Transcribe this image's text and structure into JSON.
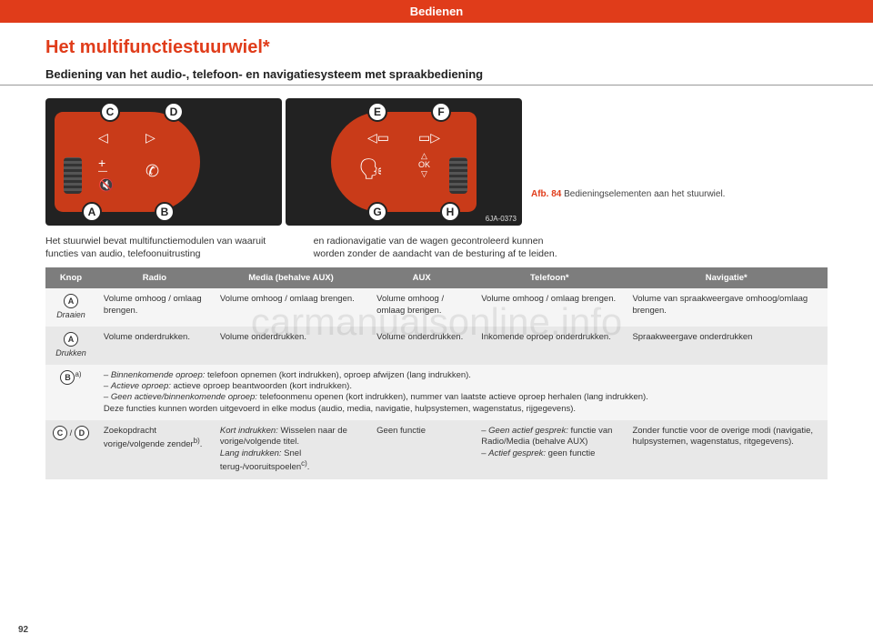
{
  "header": "Bedienen",
  "section_title": "Het multifunctiestuurwiel*",
  "subsection_title": "Bediening van het audio-, telefoon- en navigatiesysteem met spraakbediening",
  "figure": {
    "left_callouts": [
      "C",
      "D",
      "A",
      "B"
    ],
    "right_callouts": [
      "E",
      "F",
      "G",
      "H"
    ],
    "watermark_code": "6JA-0373",
    "caption_label": "Afb. 84",
    "caption_text": "Bedieningselementen aan het stuurwiel."
  },
  "body": {
    "col1": "Het stuurwiel bevat multifunctiemodulen van waaruit functies van audio, telefoonuitrusting",
    "col2": "en radionavigatie van de wagen gecontroleerd kunnen worden zonder de aandacht van de besturing af te leiden."
  },
  "table": {
    "headers": [
      "Knop",
      "Radio",
      "Media (behalve AUX)",
      "AUX",
      "Telefoon*",
      "Navigatie*"
    ],
    "rows": [
      {
        "knop_letters": [
          "A"
        ],
        "knop_sub": "Draaien",
        "knop_suffix": "",
        "cells": [
          "Volume omhoog / omlaag brengen.",
          "Volume omhoog / omlaag brengen.",
          "Volume omhoog / omlaag brengen.",
          "Volume omhoog / omlaag brengen.",
          "Volume van spraakweergave omhoog/omlaag brengen."
        ],
        "full": false
      },
      {
        "knop_letters": [
          "A"
        ],
        "knop_sub": "Drukken",
        "knop_suffix": "",
        "cells": [
          "Volume onderdrukken.",
          "Volume onderdrukken.",
          "Volume onderdrukken.",
          "Inkomende oproep onderdrukken.",
          "Spraakweergave onderdrukken"
        ],
        "full": false
      },
      {
        "knop_letters": [
          "B"
        ],
        "knop_sub": "",
        "knop_suffix": "a)",
        "full": true,
        "full_html": "– <em>Binnenkomende oproep:</em> telefoon opnemen (kort indrukken), oproep afwijzen (lang indrukken).<br>– <em>Actieve oproep:</em> actieve oproep beantwoorden (kort indrukken).<br>– <em>Geen actieve/binnenkomende oproep:</em> telefoonmenu openen (kort indrukken), nummer van laatste actieve oproep herhalen (lang indrukken).<br>Deze functies kunnen worden uitgevoerd in elke modus (audio, media, navigatie, hulpsystemen, wagenstatus, rijgegevens)."
      },
      {
        "knop_letters": [
          "C",
          "D"
        ],
        "knop_sub": "",
        "knop_suffix": "",
        "knop_sep": " / ",
        "cells": [
          "Zoekopdracht vorige/volgende zender<sup>b)</sup>.",
          "<em>Kort indrukken:</em> Wisselen naar de vorige/volgende titel.<br><em>Lang indrukken:</em> Snel terug-/vooruitspoelen<sup>c)</sup>.",
          "Geen functie",
          "– <em>Geen actief gesprek:</em> functie van Radio/Media (behalve AUX)<br>– <em>Actief gesprek:</em> geen functie",
          "Zonder functie voor de overige modi (navigatie, hulpsystemen, wagenstatus, ritgegevens)."
        ],
        "full": false
      }
    ]
  },
  "page_number": "92",
  "watermark": "carmanualsonline.info",
  "colors": {
    "accent": "#e03c1a",
    "header_bg": "#7d7d7d",
    "row_odd": "#f5f5f5",
    "row_even": "#e8e8e8",
    "panel": "#c93b19"
  }
}
